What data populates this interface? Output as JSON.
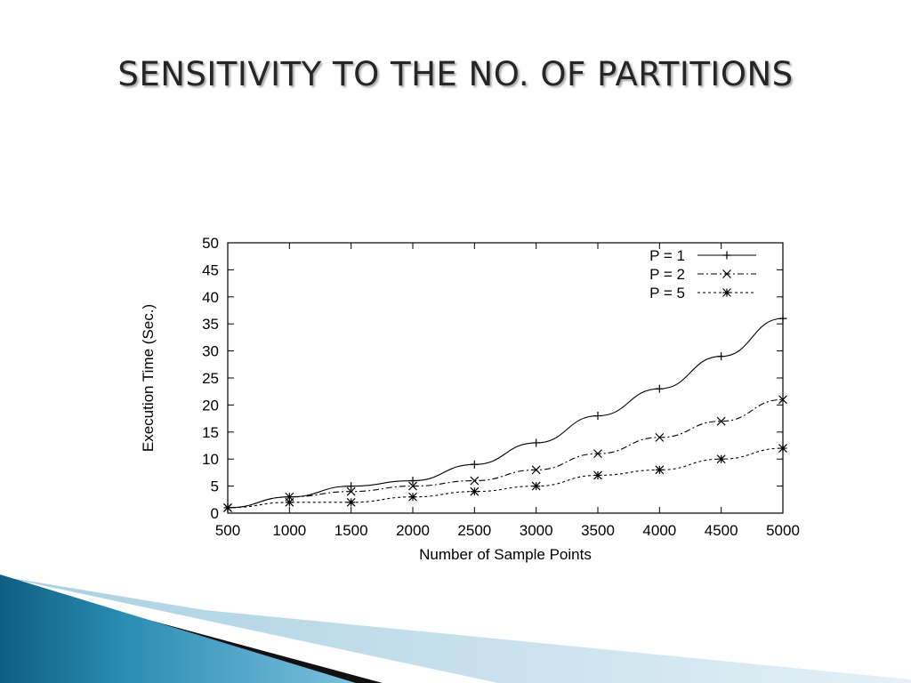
{
  "slide": {
    "title": "SENSITIVITY TO THE NO. OF PARTITIONS"
  },
  "colors": {
    "title_text": "#262626",
    "chart_ink": "#000000",
    "deco_dark": "#0d0d0d",
    "deco_blue": "#1f7fa3",
    "deco_light": "#bfdbe8"
  },
  "chart_data": {
    "type": "line",
    "title": "",
    "xlabel": "Number of Sample Points",
    "ylabel": "Execution Time (Sec.)",
    "x": [
      500,
      1000,
      1500,
      2000,
      2500,
      3000,
      3500,
      4000,
      4500,
      5000
    ],
    "xlim": [
      500,
      5000
    ],
    "ylim": [
      0,
      50
    ],
    "xticks": [
      "500",
      "1000",
      "1500",
      "2000",
      "2500",
      "3000",
      "3500",
      "4000",
      "4500",
      "5000"
    ],
    "yticks": [
      "0",
      "5",
      "10",
      "15",
      "20",
      "25",
      "30",
      "35",
      "40",
      "45",
      "50"
    ],
    "grid": false,
    "legend_position": "top-right",
    "series": [
      {
        "name": "P = 1",
        "line_style": "solid",
        "marker": "plus",
        "values": [
          1,
          3,
          5,
          6,
          9,
          13,
          18,
          23,
          29,
          36
        ]
      },
      {
        "name": "P = 2",
        "line_style": "dash-dot",
        "marker": "x",
        "values": [
          1,
          3,
          4,
          5,
          6,
          8,
          11,
          14,
          17,
          21
        ]
      },
      {
        "name": "P = 5",
        "line_style": "dotted",
        "marker": "asterisk",
        "values": [
          1,
          2,
          2,
          3,
          4,
          5,
          7,
          8,
          10,
          12
        ]
      }
    ]
  }
}
